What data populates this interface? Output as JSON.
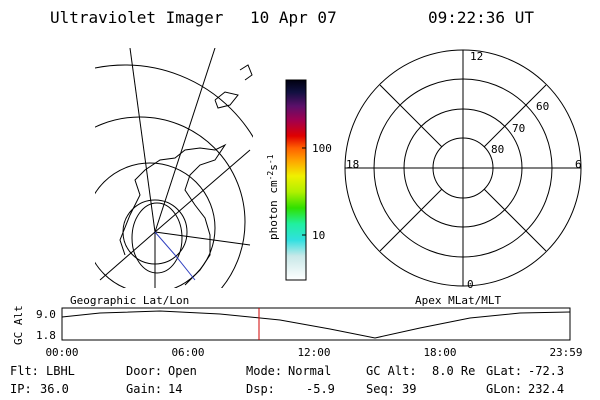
{
  "header": {
    "instrument": "Ultraviolet Imager",
    "date": "10 Apr 07",
    "time": "09:22:36 UT"
  },
  "colorbar": {
    "units": {
      "base": "photon cm",
      "exp1": "-2",
      "mid": "s",
      "exp2": "-1"
    },
    "ticks": [
      "100",
      "10"
    ]
  },
  "polar": {
    "mlt": {
      "top": "12",
      "bottom": "0",
      "left": "18",
      "right": "6"
    },
    "lat": [
      "60",
      "70",
      "80"
    ]
  },
  "timeline": {
    "left_title": "Geographic Lat/Lon",
    "right_title": "Apex MLat/MLT",
    "axis_label": "GC Alt",
    "yticks": [
      "9.0",
      "1.8"
    ],
    "xticks": [
      "00:00",
      "06:00",
      "12:00",
      "18:00",
      "23:59"
    ]
  },
  "info": [
    [
      {
        "label": "Flt:",
        "value": "LBHL"
      },
      {
        "label": "Door:",
        "value": "Open"
      },
      {
        "label": "Mode:",
        "value": "Normal"
      },
      {
        "label": "GC Alt:",
        "value": "8.0 Re"
      },
      {
        "label": "GLat:",
        "value": "-72.3"
      }
    ],
    [
      {
        "label": "IP:",
        "value": "36.0"
      },
      {
        "label": "Gain:",
        "value": "14"
      },
      {
        "label": "Dsp:",
        "value": "-5.9"
      },
      {
        "label": "Seq:",
        "value": "39"
      },
      {
        "label": "GLon:",
        "value": "232.4"
      }
    ]
  ]
}
